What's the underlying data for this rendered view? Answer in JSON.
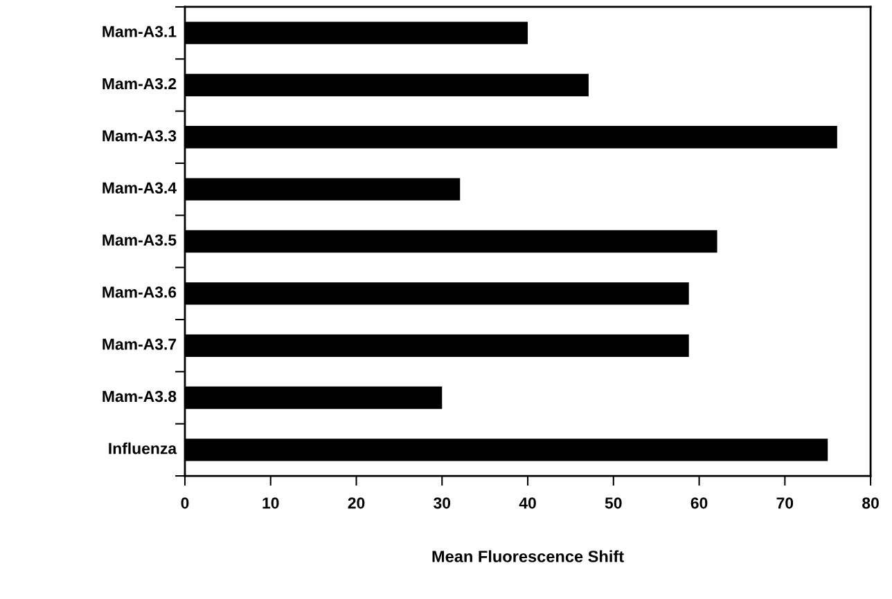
{
  "chart_data": {
    "type": "bar",
    "orientation": "horizontal",
    "xlabel": "Mean Fluorescence Shift",
    "categories": [
      "Mam-A3.1",
      "Mam-A3.2",
      "Mam-A3.3",
      "Mam-A3.4",
      "Mam-A3.5",
      "Mam-A3.6",
      "Mam-A3.7",
      "Mam-A3.8",
      "Influenza"
    ],
    "values": [
      40.0,
      47.1,
      76.1,
      32.1,
      62.1,
      58.8,
      58.8,
      30.0,
      75.0
    ],
    "color": "#000000",
    "xlim": [
      0,
      80
    ],
    "xticks": [
      0,
      10,
      20,
      30,
      40,
      50,
      60,
      70,
      80
    ],
    "grid": false,
    "legend": false
  }
}
